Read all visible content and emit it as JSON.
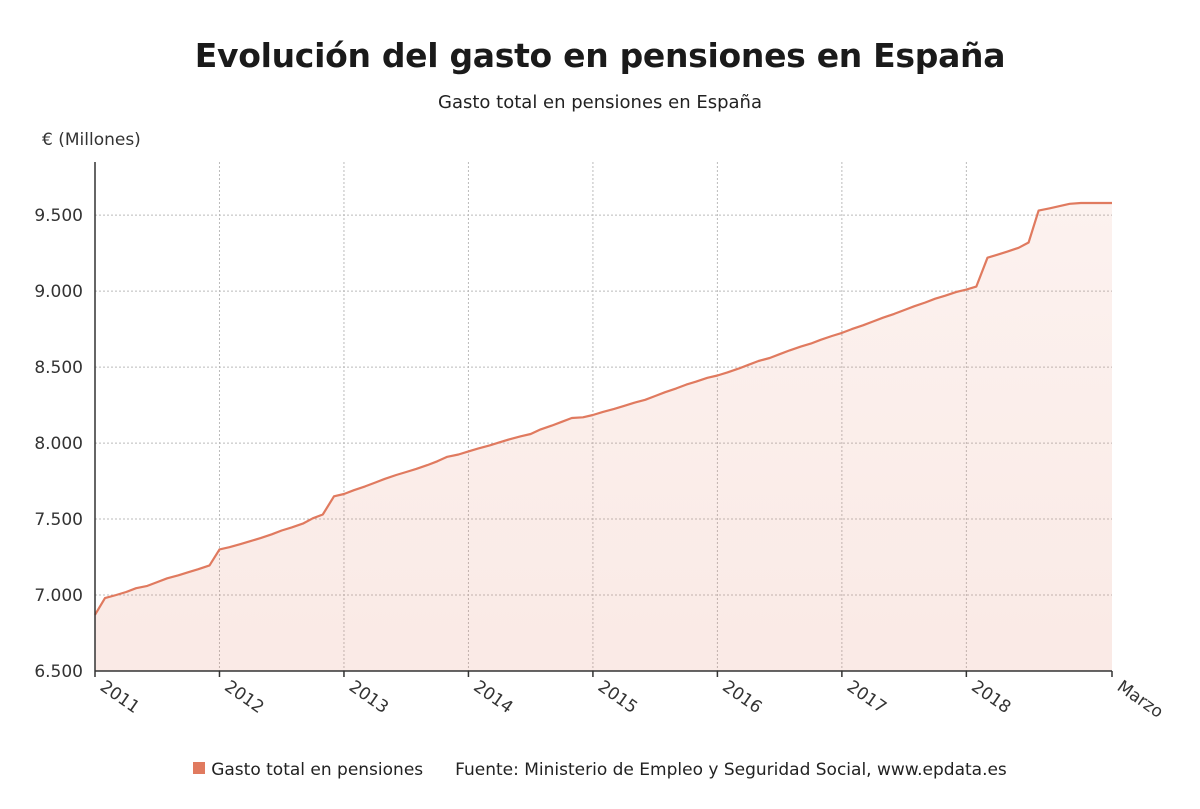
{
  "chart_data": {
    "type": "area",
    "title": "Evolución del gasto en pensiones en España",
    "subtitle": "Gasto total en pensiones en España",
    "ylabel": "€ (Millones)",
    "xlabel": "",
    "ylim": [
      6500,
      9850
    ],
    "xlim": [
      2011,
      2019.17
    ],
    "yticks": [
      6500,
      7000,
      7500,
      8000,
      8500,
      9000,
      9500
    ],
    "ytick_labels": [
      "6.500",
      "7.000",
      "7.500",
      "8.000",
      "8.500",
      "9.000",
      "9.500"
    ],
    "xticks": [
      2011,
      2012,
      2013,
      2014,
      2015,
      2016,
      2017,
      2018,
      2019.17
    ],
    "xtick_labels": [
      "2011",
      "2012",
      "2013",
      "2014",
      "2015",
      "2016",
      "2017",
      "2018",
      "Marzo"
    ],
    "grid": true,
    "color": "#e07a5f",
    "series": [
      {
        "name": "Gasto total en pensiones",
        "x": [
          2011.0,
          2011.08,
          2011.17,
          2011.25,
          2011.33,
          2011.42,
          2011.5,
          2011.58,
          2011.67,
          2011.75,
          2011.83,
          2011.92,
          2012.0,
          2012.08,
          2012.17,
          2012.25,
          2012.33,
          2012.42,
          2012.5,
          2012.58,
          2012.67,
          2012.75,
          2012.83,
          2012.92,
          2013.0,
          2013.08,
          2013.17,
          2013.25,
          2013.33,
          2013.42,
          2013.5,
          2013.58,
          2013.67,
          2013.75,
          2013.83,
          2013.92,
          2014.0,
          2014.08,
          2014.17,
          2014.25,
          2014.33,
          2014.42,
          2014.5,
          2014.58,
          2014.67,
          2014.75,
          2014.83,
          2014.92,
          2015.0,
          2015.08,
          2015.17,
          2015.25,
          2015.33,
          2015.42,
          2015.5,
          2015.58,
          2015.67,
          2015.75,
          2015.83,
          2015.92,
          2016.0,
          2016.08,
          2016.17,
          2016.25,
          2016.33,
          2016.42,
          2016.5,
          2016.58,
          2016.67,
          2016.75,
          2016.83,
          2016.92,
          2017.0,
          2017.08,
          2017.17,
          2017.25,
          2017.33,
          2017.42,
          2017.5,
          2017.58,
          2017.67,
          2017.75,
          2017.83,
          2017.92,
          2018.0,
          2018.08,
          2018.17,
          2018.25,
          2018.33,
          2018.42,
          2018.5,
          2018.58,
          2018.67,
          2018.75,
          2018.83,
          2018.92,
          2019.0,
          2019.08,
          2019.17
        ],
        "values": [
          6870,
          6980,
          7000,
          7020,
          7045,
          7060,
          7085,
          7110,
          7130,
          7150,
          7170,
          7195,
          7300,
          7315,
          7335,
          7355,
          7375,
          7400,
          7425,
          7445,
          7470,
          7505,
          7530,
          7650,
          7665,
          7690,
          7715,
          7740,
          7765,
          7790,
          7810,
          7830,
          7855,
          7880,
          7910,
          7925,
          7945,
          7965,
          7985,
          8005,
          8025,
          8045,
          8060,
          8090,
          8115,
          8140,
          8165,
          8170,
          8185,
          8205,
          8225,
          8245,
          8265,
          8285,
          8310,
          8335,
          8360,
          8385,
          8405,
          8430,
          8445,
          8465,
          8490,
          8515,
          8540,
          8560,
          8585,
          8610,
          8635,
          8655,
          8680,
          8705,
          8725,
          8750,
          8775,
          8800,
          8825,
          8850,
          8875,
          8900,
          8925,
          8950,
          8970,
          8995,
          9010,
          9030,
          9220,
          9240,
          9260,
          9285,
          9320,
          9530,
          9545,
          9560,
          9575,
          9580,
          9580,
          9580,
          9580
        ]
      }
    ]
  },
  "legend": {
    "series_label": "Gasto total en pensiones",
    "source": "Fuente: Ministerio de Empleo y Seguridad Social, www.epdata.es"
  }
}
